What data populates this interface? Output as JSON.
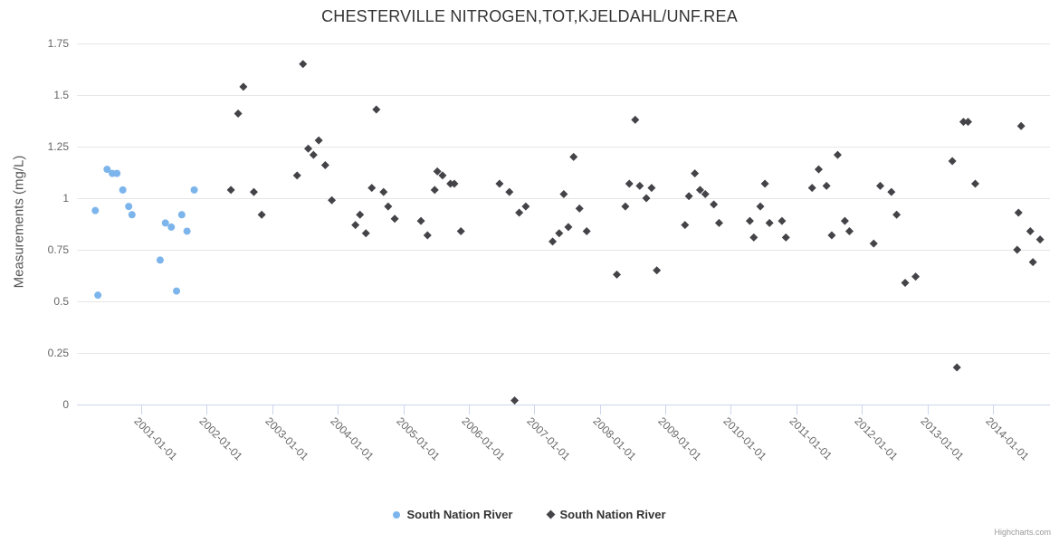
{
  "credit": "Highcharts.com",
  "colors": {
    "series1": "#7cb5ec",
    "series2": "#434348",
    "grid": "#e6e6e6",
    "axis": "#ccd6eb",
    "title_text": "#333333",
    "axis_label": "#666666",
    "y_axis_title": "#555555",
    "legend_text": "#333333",
    "credit_text": "#999999"
  },
  "chart_data": {
    "type": "scatter",
    "title": "CHESTERVILLE NITROGEN,TOT,KJELDAHL/UNF.REA",
    "xlabel": "",
    "ylabel": "Measurements (mg/L)",
    "ylim": [
      0,
      1.75
    ],
    "xlim": [
      2000.02,
      2014.87
    ],
    "y_ticks": [
      0,
      0.25,
      0.5,
      0.75,
      1,
      1.25,
      1.5,
      1.75
    ],
    "x_ticks": [
      "2001-01-01",
      "2002-01-01",
      "2003-01-01",
      "2004-01-01",
      "2005-01-01",
      "2006-01-01",
      "2007-01-01",
      "2008-01-01",
      "2009-01-01",
      "2010-01-01",
      "2011-01-01",
      "2012-01-01",
      "2013-01-01",
      "2014-01-01"
    ],
    "grid": "horizontal",
    "legend_position": "bottom-center",
    "series": [
      {
        "name": "South Nation River",
        "color": "#7cb5ec",
        "marker": "circle",
        "points": [
          [
            2000.3,
            0.94
          ],
          [
            2000.34,
            0.53
          ],
          [
            2000.48,
            1.14
          ],
          [
            2000.56,
            1.12
          ],
          [
            2000.63,
            1.12
          ],
          [
            2000.72,
            1.04
          ],
          [
            2000.81,
            0.96
          ],
          [
            2000.86,
            0.92
          ],
          [
            2001.29,
            0.7
          ],
          [
            2001.37,
            0.88
          ],
          [
            2001.46,
            0.86
          ],
          [
            2001.54,
            0.55
          ],
          [
            2001.62,
            0.92
          ],
          [
            2001.7,
            0.84
          ],
          [
            2001.81,
            1.04
          ]
        ]
      },
      {
        "name": "South Nation River",
        "color": "#434348",
        "marker": "diamond",
        "points": [
          [
            2002.37,
            1.04
          ],
          [
            2002.48,
            1.41
          ],
          [
            2002.56,
            1.54
          ],
          [
            2002.72,
            1.03
          ],
          [
            2002.84,
            0.92
          ],
          [
            2003.38,
            1.11
          ],
          [
            2003.47,
            1.65
          ],
          [
            2003.55,
            1.24
          ],
          [
            2003.63,
            1.21
          ],
          [
            2003.71,
            1.28
          ],
          [
            2003.81,
            1.16
          ],
          [
            2003.91,
            0.99
          ],
          [
            2004.27,
            0.87
          ],
          [
            2004.34,
            0.92
          ],
          [
            2004.43,
            0.83
          ],
          [
            2004.52,
            1.05
          ],
          [
            2004.59,
            1.43
          ],
          [
            2004.7,
            1.03
          ],
          [
            2004.77,
            0.96
          ],
          [
            2004.87,
            0.9
          ],
          [
            2005.27,
            0.89
          ],
          [
            2005.37,
            0.82
          ],
          [
            2005.48,
            1.04
          ],
          [
            2005.52,
            1.13
          ],
          [
            2005.6,
            1.11
          ],
          [
            2005.72,
            1.07
          ],
          [
            2005.78,
            1.07
          ],
          [
            2005.88,
            0.84
          ],
          [
            2006.47,
            1.07
          ],
          [
            2006.62,
            1.03
          ],
          [
            2006.7,
            0.02
          ],
          [
            2006.77,
            0.93
          ],
          [
            2006.87,
            0.96
          ],
          [
            2007.28,
            0.79
          ],
          [
            2007.38,
            0.83
          ],
          [
            2007.45,
            1.02
          ],
          [
            2007.52,
            0.86
          ],
          [
            2007.6,
            1.2
          ],
          [
            2007.69,
            0.95
          ],
          [
            2007.8,
            0.84
          ],
          [
            2008.26,
            0.63
          ],
          [
            2008.39,
            0.96
          ],
          [
            2008.45,
            1.07
          ],
          [
            2008.54,
            1.38
          ],
          [
            2008.61,
            1.06
          ],
          [
            2008.71,
            1.0
          ],
          [
            2008.79,
            1.05
          ],
          [
            2008.87,
            0.65
          ],
          [
            2009.3,
            0.87
          ],
          [
            2009.36,
            1.01
          ],
          [
            2009.45,
            1.12
          ],
          [
            2009.53,
            1.04
          ],
          [
            2009.61,
            1.02
          ],
          [
            2009.74,
            0.97
          ],
          [
            2009.82,
            0.88
          ],
          [
            2010.29,
            0.89
          ],
          [
            2010.35,
            0.81
          ],
          [
            2010.45,
            0.96
          ],
          [
            2010.52,
            1.07
          ],
          [
            2010.59,
            0.88
          ],
          [
            2010.78,
            0.89
          ],
          [
            2010.84,
            0.81
          ],
          [
            2011.24,
            1.05
          ],
          [
            2011.34,
            1.14
          ],
          [
            2011.46,
            1.06
          ],
          [
            2011.54,
            0.82
          ],
          [
            2011.63,
            1.21
          ],
          [
            2011.74,
            0.89
          ],
          [
            2011.81,
            0.84
          ],
          [
            2012.18,
            0.78
          ],
          [
            2012.28,
            1.06
          ],
          [
            2012.45,
            1.03
          ],
          [
            2012.53,
            0.92
          ],
          [
            2012.66,
            0.59
          ],
          [
            2012.82,
            0.62
          ],
          [
            2013.38,
            1.18
          ],
          [
            2013.45,
            0.18
          ],
          [
            2013.55,
            1.37
          ],
          [
            2013.62,
            1.37
          ],
          [
            2013.73,
            1.07
          ],
          [
            2014.37,
            0.75
          ],
          [
            2014.39,
            0.93
          ],
          [
            2014.43,
            1.35
          ],
          [
            2014.57,
            0.84
          ],
          [
            2014.61,
            0.69
          ],
          [
            2014.72,
            0.8
          ]
        ]
      }
    ]
  }
}
